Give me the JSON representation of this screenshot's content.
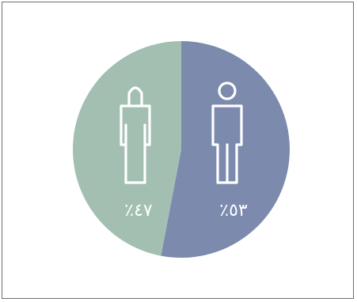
{
  "chart_data": {
    "type": "pie",
    "slices": [
      {
        "value": 53,
        "label": "٪٥٣",
        "color": "#7b8aad",
        "icon": "man-icon"
      },
      {
        "value": 47,
        "label": "٪٤٧",
        "color": "#a3bfb2",
        "icon": "woman-icon"
      }
    ],
    "title": "",
    "legend": "none"
  }
}
